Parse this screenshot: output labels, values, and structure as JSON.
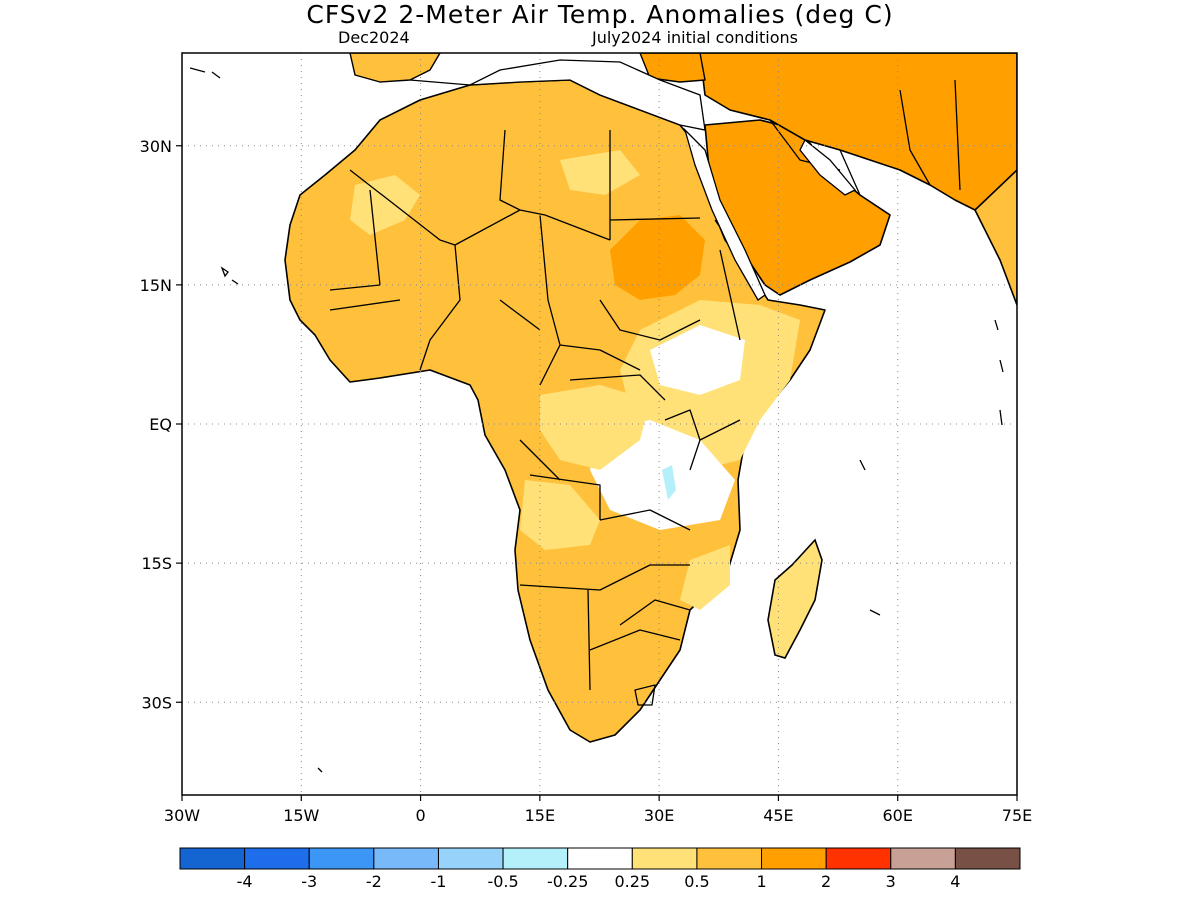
{
  "header": {
    "title": "CFSv2 2-Meter Air Temp. Anomalies (deg C)",
    "valid_month": "Dec2024",
    "init_label": "July2024 initial conditions"
  },
  "axes": {
    "lat_labels": [
      "30N",
      "15N",
      "EQ",
      "15S",
      "30S"
    ],
    "lat_values": [
      30,
      15,
      0,
      -15,
      -30
    ],
    "lon_labels": [
      "30W",
      "15W",
      "0",
      "15E",
      "30E",
      "45E",
      "60E",
      "75E"
    ],
    "lon_values": [
      -30,
      -15,
      0,
      15,
      30,
      45,
      60,
      75
    ],
    "lon_range": [
      -30,
      75
    ],
    "lat_range": [
      -40,
      40
    ],
    "grid": "dotted"
  },
  "colorbar": {
    "colors": [
      "#1464d2",
      "#1e6eeb",
      "#3c96f5",
      "#78b9fa",
      "#96d2fa",
      "#b4f0fa",
      "#ffffff",
      "#ffe178",
      "#ffc03c",
      "#ffa000",
      "#ff3200",
      "#c8a096",
      "#785046"
    ],
    "labels": [
      "-4",
      "-3",
      "-2",
      "-1",
      "-0.5",
      "-0.25",
      "0.25",
      "0.5",
      "1",
      "2",
      "3",
      "4"
    ]
  }
}
